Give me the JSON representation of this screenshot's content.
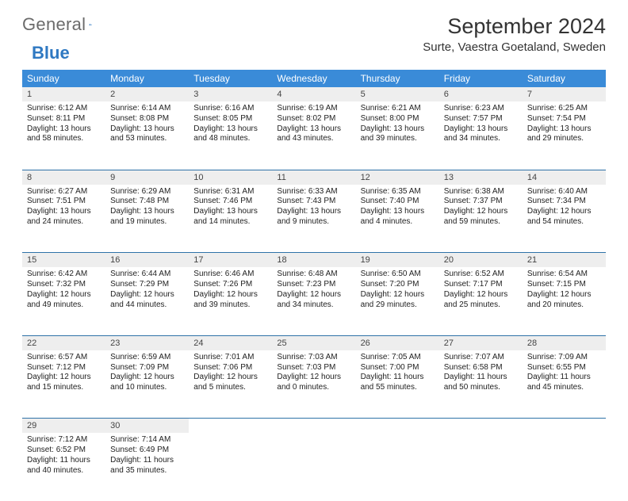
{
  "brand": {
    "general": "General",
    "blue": "Blue"
  },
  "title": "September 2024",
  "location": "Surte, Vaestra Goetaland, Sweden",
  "colors": {
    "header_bg": "#3a8bd8",
    "header_text": "#ffffff",
    "daynum_bg": "#eeeeee",
    "rule": "#2f72a8",
    "brand_gray": "#6b6b6b",
    "brand_blue": "#2f79c2",
    "page_bg": "#ffffff",
    "text": "#222222"
  },
  "weekdays": [
    "Sunday",
    "Monday",
    "Tuesday",
    "Wednesday",
    "Thursday",
    "Friday",
    "Saturday"
  ],
  "weeks": [
    [
      {
        "day": "1",
        "sunrise": "Sunrise: 6:12 AM",
        "sunset": "Sunset: 8:11 PM",
        "daylight": "Daylight: 13 hours and 58 minutes."
      },
      {
        "day": "2",
        "sunrise": "Sunrise: 6:14 AM",
        "sunset": "Sunset: 8:08 PM",
        "daylight": "Daylight: 13 hours and 53 minutes."
      },
      {
        "day": "3",
        "sunrise": "Sunrise: 6:16 AM",
        "sunset": "Sunset: 8:05 PM",
        "daylight": "Daylight: 13 hours and 48 minutes."
      },
      {
        "day": "4",
        "sunrise": "Sunrise: 6:19 AM",
        "sunset": "Sunset: 8:02 PM",
        "daylight": "Daylight: 13 hours and 43 minutes."
      },
      {
        "day": "5",
        "sunrise": "Sunrise: 6:21 AM",
        "sunset": "Sunset: 8:00 PM",
        "daylight": "Daylight: 13 hours and 39 minutes."
      },
      {
        "day": "6",
        "sunrise": "Sunrise: 6:23 AM",
        "sunset": "Sunset: 7:57 PM",
        "daylight": "Daylight: 13 hours and 34 minutes."
      },
      {
        "day": "7",
        "sunrise": "Sunrise: 6:25 AM",
        "sunset": "Sunset: 7:54 PM",
        "daylight": "Daylight: 13 hours and 29 minutes."
      }
    ],
    [
      {
        "day": "8",
        "sunrise": "Sunrise: 6:27 AM",
        "sunset": "Sunset: 7:51 PM",
        "daylight": "Daylight: 13 hours and 24 minutes."
      },
      {
        "day": "9",
        "sunrise": "Sunrise: 6:29 AM",
        "sunset": "Sunset: 7:48 PM",
        "daylight": "Daylight: 13 hours and 19 minutes."
      },
      {
        "day": "10",
        "sunrise": "Sunrise: 6:31 AM",
        "sunset": "Sunset: 7:46 PM",
        "daylight": "Daylight: 13 hours and 14 minutes."
      },
      {
        "day": "11",
        "sunrise": "Sunrise: 6:33 AM",
        "sunset": "Sunset: 7:43 PM",
        "daylight": "Daylight: 13 hours and 9 minutes."
      },
      {
        "day": "12",
        "sunrise": "Sunrise: 6:35 AM",
        "sunset": "Sunset: 7:40 PM",
        "daylight": "Daylight: 13 hours and 4 minutes."
      },
      {
        "day": "13",
        "sunrise": "Sunrise: 6:38 AM",
        "sunset": "Sunset: 7:37 PM",
        "daylight": "Daylight: 12 hours and 59 minutes."
      },
      {
        "day": "14",
        "sunrise": "Sunrise: 6:40 AM",
        "sunset": "Sunset: 7:34 PM",
        "daylight": "Daylight: 12 hours and 54 minutes."
      }
    ],
    [
      {
        "day": "15",
        "sunrise": "Sunrise: 6:42 AM",
        "sunset": "Sunset: 7:32 PM",
        "daylight": "Daylight: 12 hours and 49 minutes."
      },
      {
        "day": "16",
        "sunrise": "Sunrise: 6:44 AM",
        "sunset": "Sunset: 7:29 PM",
        "daylight": "Daylight: 12 hours and 44 minutes."
      },
      {
        "day": "17",
        "sunrise": "Sunrise: 6:46 AM",
        "sunset": "Sunset: 7:26 PM",
        "daylight": "Daylight: 12 hours and 39 minutes."
      },
      {
        "day": "18",
        "sunrise": "Sunrise: 6:48 AM",
        "sunset": "Sunset: 7:23 PM",
        "daylight": "Daylight: 12 hours and 34 minutes."
      },
      {
        "day": "19",
        "sunrise": "Sunrise: 6:50 AM",
        "sunset": "Sunset: 7:20 PM",
        "daylight": "Daylight: 12 hours and 29 minutes."
      },
      {
        "day": "20",
        "sunrise": "Sunrise: 6:52 AM",
        "sunset": "Sunset: 7:17 PM",
        "daylight": "Daylight: 12 hours and 25 minutes."
      },
      {
        "day": "21",
        "sunrise": "Sunrise: 6:54 AM",
        "sunset": "Sunset: 7:15 PM",
        "daylight": "Daylight: 12 hours and 20 minutes."
      }
    ],
    [
      {
        "day": "22",
        "sunrise": "Sunrise: 6:57 AM",
        "sunset": "Sunset: 7:12 PM",
        "daylight": "Daylight: 12 hours and 15 minutes."
      },
      {
        "day": "23",
        "sunrise": "Sunrise: 6:59 AM",
        "sunset": "Sunset: 7:09 PM",
        "daylight": "Daylight: 12 hours and 10 minutes."
      },
      {
        "day": "24",
        "sunrise": "Sunrise: 7:01 AM",
        "sunset": "Sunset: 7:06 PM",
        "daylight": "Daylight: 12 hours and 5 minutes."
      },
      {
        "day": "25",
        "sunrise": "Sunrise: 7:03 AM",
        "sunset": "Sunset: 7:03 PM",
        "daylight": "Daylight: 12 hours and 0 minutes."
      },
      {
        "day": "26",
        "sunrise": "Sunrise: 7:05 AM",
        "sunset": "Sunset: 7:00 PM",
        "daylight": "Daylight: 11 hours and 55 minutes."
      },
      {
        "day": "27",
        "sunrise": "Sunrise: 7:07 AM",
        "sunset": "Sunset: 6:58 PM",
        "daylight": "Daylight: 11 hours and 50 minutes."
      },
      {
        "day": "28",
        "sunrise": "Sunrise: 7:09 AM",
        "sunset": "Sunset: 6:55 PM",
        "daylight": "Daylight: 11 hours and 45 minutes."
      }
    ],
    [
      {
        "day": "29",
        "sunrise": "Sunrise: 7:12 AM",
        "sunset": "Sunset: 6:52 PM",
        "daylight": "Daylight: 11 hours and 40 minutes."
      },
      {
        "day": "30",
        "sunrise": "Sunrise: 7:14 AM",
        "sunset": "Sunset: 6:49 PM",
        "daylight": "Daylight: 11 hours and 35 minutes."
      },
      null,
      null,
      null,
      null,
      null
    ]
  ]
}
